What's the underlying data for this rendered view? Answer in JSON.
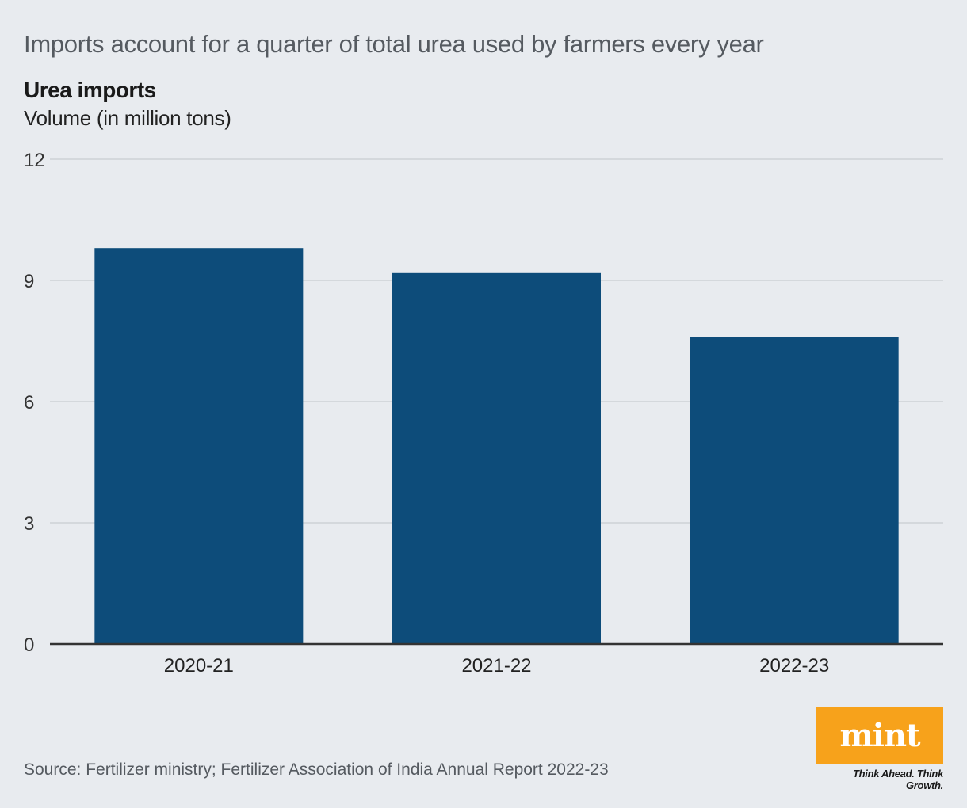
{
  "headline": "Imports account for a quarter of total urea used by farmers every year",
  "source": "Source: Fertilizer ministry; Fertilizer Association of India Annual Report 2022-23",
  "logo": {
    "text": "mint",
    "tagline": "Think Ahead. Think Growth.",
    "color": "#f7a21b"
  },
  "colors": {
    "bar": "#0d4c7a",
    "grid": "#cdd1d6",
    "axis": "#333333",
    "background": "#e8ebef"
  },
  "chart_data": {
    "type": "bar",
    "title": "Urea imports",
    "subtitle": "Volume (in million tons)",
    "categories": [
      "2020-21",
      "2021-22",
      "2022-23"
    ],
    "values": [
      9.8,
      9.2,
      7.6
    ],
    "yticks": [
      0,
      3,
      6,
      9,
      12
    ],
    "ylim": [
      0,
      12
    ],
    "xlabel": "",
    "ylabel": "",
    "grid": true,
    "legend": "none"
  }
}
